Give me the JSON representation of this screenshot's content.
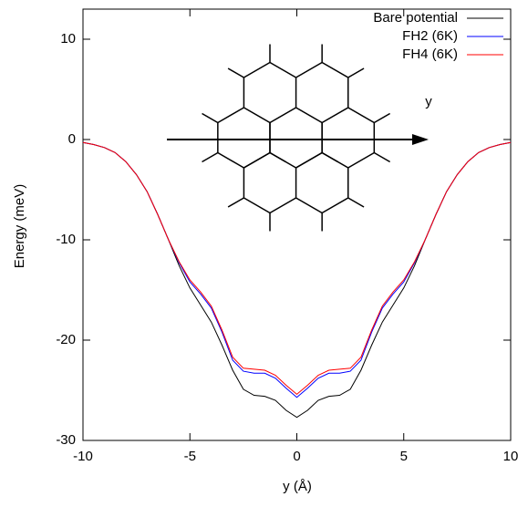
{
  "chart_data": {
    "type": "line",
    "xlabel": "y (Å)",
    "ylabel": "Energy (meV)",
    "inset_label": "y",
    "x": [
      -10,
      -9.5,
      -9,
      -8.5,
      -8,
      -7.5,
      -7,
      -6.5,
      -6,
      -5.5,
      -5,
      -4.5,
      -4,
      -3.5,
      -3,
      -2.5,
      -2,
      -1.5,
      -1,
      -0.5,
      0,
      0.5,
      1,
      1.5,
      2,
      2.5,
      3,
      3.5,
      4,
      4.5,
      5,
      5.5,
      6,
      6.5,
      7,
      7.5,
      8,
      8.5,
      9,
      9.5,
      10
    ],
    "series": [
      {
        "name": "Bare potential",
        "color": "#000000",
        "values": [
          -0.3,
          -0.5,
          -0.8,
          -1.3,
          -2.2,
          -3.5,
          -5.2,
          -7.5,
          -10,
          -12.6,
          -14.8,
          -16.5,
          -18.2,
          -20.5,
          -23,
          -24.9,
          -25.5,
          -25.6,
          -26,
          -27,
          -27.7,
          -27,
          -26,
          -25.6,
          -25.5,
          -24.9,
          -23,
          -20.5,
          -18.2,
          -16.5,
          -14.8,
          -12.6,
          -10,
          -7.5,
          -5.2,
          -3.5,
          -2.2,
          -1.3,
          -0.8,
          -0.5,
          -0.3
        ]
      },
      {
        "name": "FH2 (6K)",
        "color": "#0000ff",
        "values": [
          -0.3,
          -0.5,
          -0.8,
          -1.3,
          -2.2,
          -3.5,
          -5.2,
          -7.5,
          -10,
          -12.3,
          -14.2,
          -15.4,
          -16.8,
          -19.2,
          -22,
          -23.1,
          -23.3,
          -23.3,
          -23.8,
          -24.8,
          -25.7,
          -24.8,
          -23.8,
          -23.3,
          -23.3,
          -23.1,
          -22,
          -19.2,
          -16.8,
          -15.4,
          -14.2,
          -12.3,
          -10,
          -7.5,
          -5.2,
          -3.5,
          -2.2,
          -1.3,
          -0.8,
          -0.5,
          -0.3
        ]
      },
      {
        "name": "FH4 (6K)",
        "color": "#ff0000",
        "values": [
          -0.3,
          -0.5,
          -0.8,
          -1.3,
          -2.2,
          -3.5,
          -5.2,
          -7.5,
          -10,
          -12.2,
          -14,
          -15.2,
          -16.6,
          -19,
          -21.7,
          -22.8,
          -22.9,
          -23,
          -23.5,
          -24.5,
          -25.4,
          -24.5,
          -23.5,
          -23,
          -22.9,
          -22.8,
          -21.7,
          -19,
          -16.6,
          -15.2,
          -14,
          -12.2,
          -10,
          -7.5,
          -5.2,
          -3.5,
          -2.2,
          -1.3,
          -0.8,
          -0.5,
          -0.3
        ]
      }
    ],
    "xlim": [
      -10,
      10
    ],
    "xticks": [
      -10,
      -5,
      0,
      5,
      10
    ],
    "ylim": [
      -30,
      13
    ],
    "yticks": [
      -30,
      -20,
      -10,
      0,
      10
    ],
    "grid": false,
    "legend": "top-right"
  }
}
